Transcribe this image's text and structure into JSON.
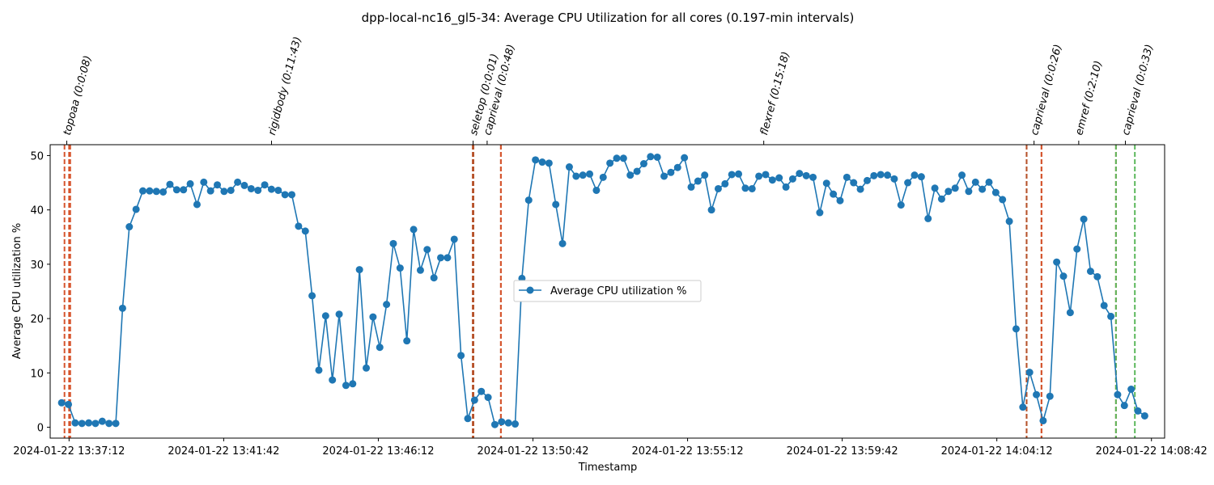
{
  "chart_data": {
    "type": "line",
    "title": "dpp-local-nc16_gl5-34: Average CPU Utilization for all cores (0.197-min intervals)",
    "xlabel": "Timestamp",
    "ylabel": "Average CPU utilization %",
    "ylim": [
      -2,
      52
    ],
    "xlim": [
      "2024-01-22 13:36:39",
      "2024-01-22 14:09:05"
    ],
    "x_ticks": [
      "2024-01-22 13:37:12",
      "2024-01-22 13:41:42",
      "2024-01-22 13:46:12",
      "2024-01-22 13:50:42",
      "2024-01-22 13:55:12",
      "2024-01-22 13:59:42",
      "2024-01-22 14:04:12",
      "2024-01-22 14:08:42"
    ],
    "y_ticks": [
      0,
      10,
      20,
      30,
      40,
      50
    ],
    "legend": {
      "label": "Average CPU utilization %",
      "position": "center"
    },
    "grid": false,
    "colors": {
      "line": "#1f77b4",
      "marker": "#1f77b4",
      "vline_red": "#d6542d",
      "vline_dark": "#b5522a",
      "vline_green": "#5cb85c"
    },
    "step_minutes": 0.197,
    "series": [
      {
        "name": "Average CPU utilization %",
        "start": "2024-01-22 13:36:59",
        "values": [
          4.5,
          4.2,
          0.8,
          0.7,
          0.8,
          0.7,
          1.1,
          0.7,
          0.7,
          21.9,
          36.9,
          40.1,
          43.5,
          43.5,
          43.4,
          43.3,
          44.7,
          43.7,
          43.7,
          44.8,
          41.0,
          45.1,
          43.5,
          44.6,
          43.4,
          43.6,
          45.1,
          44.5,
          43.9,
          43.6,
          44.6,
          43.8,
          43.6,
          42.8,
          42.8,
          37.0,
          36.1,
          24.2,
          10.5,
          20.5,
          8.7,
          20.8,
          7.7,
          8.0,
          29.0,
          10.9,
          20.3,
          14.7,
          22.6,
          33.8,
          29.3,
          15.9,
          36.4,
          28.9,
          32.7,
          27.5,
          31.2,
          31.2,
          34.6,
          13.2,
          1.6,
          5.0,
          6.6,
          5.5,
          0.5,
          1.0,
          0.8,
          0.6,
          27.4,
          41.8,
          49.2,
          48.8,
          48.6,
          41.0,
          33.8,
          47.9,
          46.2,
          46.4,
          46.6,
          43.6,
          46.0,
          48.6,
          49.5,
          49.5,
          46.4,
          47.1,
          48.5,
          49.8,
          49.7,
          46.2,
          46.9,
          47.8,
          49.6,
          44.2,
          45.3,
          46.4,
          40.0,
          43.9,
          44.8,
          46.5,
          46.6,
          44.0,
          43.9,
          46.2,
          46.5,
          45.5,
          45.9,
          44.2,
          45.7,
          46.7,
          46.3,
          46.0,
          39.5,
          44.9,
          42.9,
          41.7,
          46.0,
          45.0,
          43.8,
          45.4,
          46.3,
          46.5,
          46.4,
          45.7,
          40.9,
          45.0,
          46.4,
          46.1,
          38.4,
          44.0,
          42.0,
          43.4,
          44.0,
          46.4,
          43.4,
          45.1,
          43.8,
          45.1,
          43.2,
          41.9,
          37.9,
          18.1,
          3.7,
          10.1,
          6.0,
          1.2,
          5.7,
          30.4,
          27.8,
          21.1,
          32.8,
          38.3,
          28.7,
          27.7,
          22.4,
          20.4,
          6.0,
          4.0,
          7.0,
          3.0,
          2.1
        ]
      }
    ],
    "tasks": [
      {
        "label": "topoaa (0:0:08)",
        "start": "2024-01-22 13:37:04",
        "end": "2024-01-22 13:37:12",
        "color": "#d6542d"
      },
      {
        "label": "rigidbody (0:11:43)",
        "start": "2024-01-22 13:37:14",
        "end": "2024-01-22 13:48:57",
        "color": "#d6542d"
      },
      {
        "label": "seletop (0:0:01)",
        "start": "2024-01-22 13:48:57",
        "end": "2024-01-22 13:48:58",
        "color": "#b5522a"
      },
      {
        "label": "caprieval (0:0:48)",
        "start": "2024-01-22 13:48:58",
        "end": "2024-01-22 13:49:46",
        "color": "#b5522a"
      },
      {
        "label": "flexref (0:15:18)",
        "start": "2024-01-22 13:49:46",
        "end": "2024-01-22 14:05:04",
        "color": "#d6542d"
      },
      {
        "label": "caprieval (0:0:26)",
        "start": "2024-01-22 14:05:04",
        "end": "2024-01-22 14:05:30",
        "color": "#b5522a"
      },
      {
        "label": "emref (0:2:10)",
        "start": "2024-01-22 14:05:30",
        "end": "2024-01-22 14:07:40",
        "color": "#d6542d"
      },
      {
        "label": "caprieval (0:0:33)",
        "start": "2024-01-22 14:07:40",
        "end": "2024-01-22 14:08:13",
        "color": "#5cb85c"
      }
    ]
  }
}
